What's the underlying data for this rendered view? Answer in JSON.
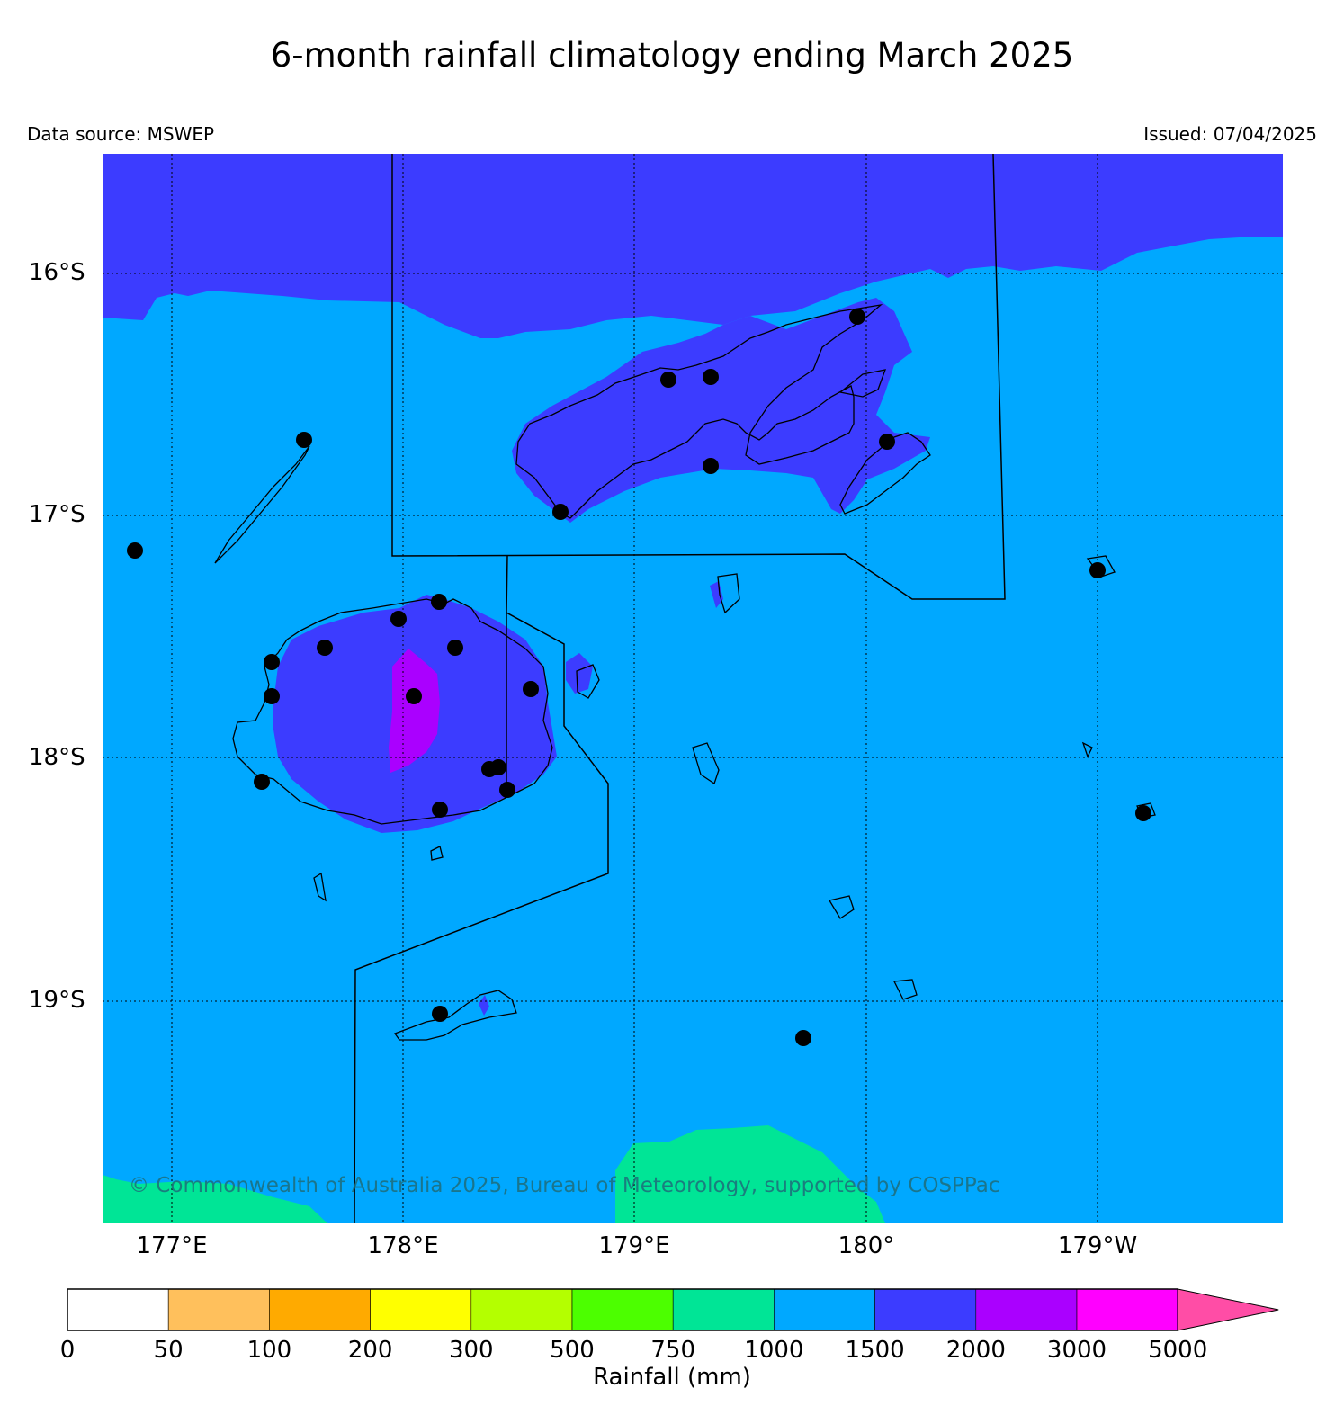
{
  "title": "6-month rainfall climatology ending March 2025",
  "data_source": "Data source: MSWEP",
  "issued": "Issued: 07/04/2025",
  "copyright": "© Commonwealth of Australia 2025, Bureau of Meteorology, supported by COSPPac",
  "lat_labels": [
    "16°S",
    "17°S",
    "18°S",
    "19°S"
  ],
  "lon_labels": [
    "177°E",
    "178°E",
    "179°E",
    "180°",
    "179°W"
  ],
  "colorbar": {
    "title": "Rainfall (mm)",
    "ticks": [
      "0",
      "50",
      "100",
      "200",
      "300",
      "500",
      "750",
      "1000",
      "1500",
      "2000",
      "3000",
      "5000"
    ],
    "colors": [
      "#ffffff",
      "#ffc05c",
      "#ffaa00",
      "#ffff00",
      "#b4ff00",
      "#4cff00",
      "#00e596",
      "#00a8ff",
      "#3c3cff",
      "#aa00ff",
      "#ff00ff"
    ],
    "extend_color": "#ff4da6"
  },
  "colors": {
    "ocean_1000_1500": "#00a8ff",
    "band_1500_2000": "#3c3cff",
    "band_2000_3000": "#aa00ff",
    "band_750_1000": "#00e596"
  }
}
